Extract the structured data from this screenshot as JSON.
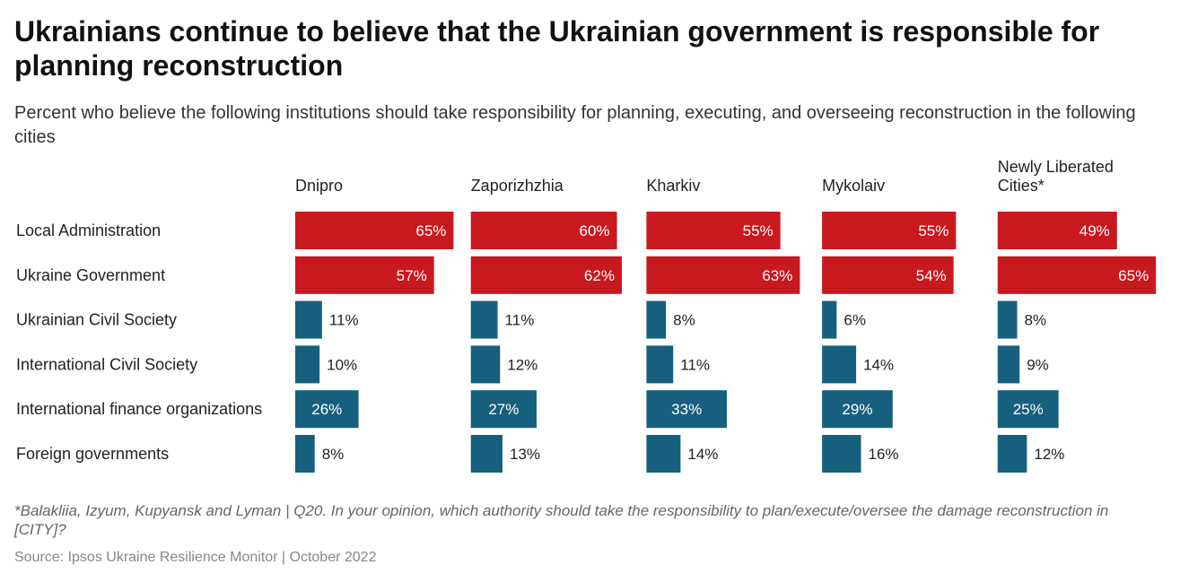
{
  "title": "Ukrainians continue to believe that the Ukrainian government is responsible for planning reconstruction",
  "subtitle": "Percent who believe the following institutions should take responsibility for planning, executing, and overseeing reconstruction in the following cities",
  "footnote": "*Balakliia, Izyum, Kupyansk and Lyman | Q20. In your opinion, which authority should take the responsibility to plan/execute/oversee the damage reconstruction in [CITY]?",
  "source": "Source: Ipsos Ukraine Resilience Monitor | October 2022",
  "colors": {
    "domestic": "#c8191f",
    "international": "#17607d"
  },
  "chart_data": {
    "type": "bar",
    "orientation": "horizontal",
    "unit": "%",
    "xlim": [
      0,
      100
    ],
    "categories": [
      "Local Administration",
      "Ukraine Government",
      "Ukrainian Civil Society",
      "International Civil Society",
      "International finance organizations",
      "Foreign governments"
    ],
    "series": [
      {
        "name": "Dnipro",
        "values": [
          65,
          57,
          11,
          10,
          26,
          8
        ]
      },
      {
        "name": "Zaporizhzhia",
        "values": [
          60,
          62,
          11,
          12,
          27,
          13
        ]
      },
      {
        "name": "Kharkiv",
        "values": [
          55,
          63,
          8,
          11,
          33,
          14
        ]
      },
      {
        "name": "Mykolaiv",
        "values": [
          55,
          54,
          6,
          14,
          29,
          16
        ]
      },
      {
        "name": "Newly Liberated Cities*",
        "values": [
          49,
          65,
          8,
          9,
          25,
          12
        ]
      }
    ]
  }
}
